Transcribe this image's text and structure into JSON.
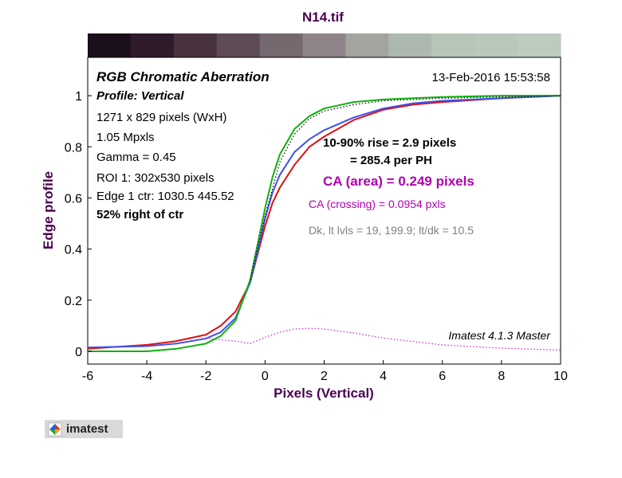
{
  "figure_title": "N14.tif",
  "logo_text": "imatest",
  "chart_data": {
    "type": "line",
    "title": "N14.tif",
    "xlabel": "Pixels (Vertical)",
    "ylabel": "Edge profile",
    "xlim": [
      -6,
      10
    ],
    "ylim": [
      -0.05,
      1.15
    ],
    "xticks": [
      "-6",
      "-4",
      "-2",
      "0",
      "2",
      "4",
      "6",
      "8",
      "10"
    ],
    "yticks": [
      "0",
      "0.2",
      "0.4",
      "0.6",
      "0.8",
      "1"
    ],
    "grid": false,
    "series": [
      {
        "color": "#e01010",
        "x": [
          -6,
          -4,
          -3,
          -2,
          -1.5,
          -1,
          -0.5,
          -0.25,
          0,
          0.25,
          0.5,
          1,
          1.5,
          2,
          3,
          4,
          5,
          6,
          8,
          10
        ],
        "y": [
          0.01,
          0.025,
          0.04,
          0.065,
          0.1,
          0.155,
          0.27,
          0.38,
          0.49,
          0.58,
          0.64,
          0.73,
          0.8,
          0.84,
          0.905,
          0.945,
          0.965,
          0.975,
          0.99,
          1.0
        ]
      },
      {
        "color": "#4050f0",
        "x": [
          -6,
          -4,
          -3,
          -2,
          -1.5,
          -1,
          -0.5,
          -0.25,
          0,
          0.25,
          0.5,
          1,
          1.5,
          2,
          3,
          4,
          5,
          6,
          8,
          10
        ],
        "y": [
          0.015,
          0.02,
          0.03,
          0.05,
          0.075,
          0.13,
          0.27,
          0.39,
          0.52,
          0.62,
          0.69,
          0.78,
          0.83,
          0.865,
          0.915,
          0.95,
          0.97,
          0.98,
          0.99,
          1.0
        ]
      },
      {
        "color": "#10b010",
        "x": [
          -6,
          -4,
          -3,
          -2,
          -1.5,
          -1,
          -0.5,
          -0.25,
          0,
          0.25,
          0.5,
          1,
          1.5,
          2,
          3,
          4,
          5,
          6,
          8,
          10
        ],
        "y": [
          0.0,
          0.0,
          0.01,
          0.03,
          0.06,
          0.12,
          0.28,
          0.42,
          0.56,
          0.68,
          0.77,
          0.87,
          0.92,
          0.95,
          0.975,
          0.985,
          0.99,
          0.995,
          1.0,
          1.0
        ]
      },
      {
        "color": "#000000",
        "style": "dotted",
        "x": [
          -0.5,
          0,
          0.5,
          1,
          1.5,
          2,
          3,
          4,
          6,
          8,
          10
        ],
        "y": [
          0.28,
          0.53,
          0.74,
          0.85,
          0.91,
          0.94,
          0.965,
          0.98,
          0.99,
          0.995,
          1.0
        ]
      },
      {
        "color": "#d020d0",
        "style": "dotted",
        "x": [
          -2,
          -1,
          -0.5,
          0,
          0.5,
          1,
          1.5,
          2,
          3,
          4,
          6,
          8,
          10
        ],
        "y": [
          0.05,
          0.04,
          0.03,
          0.055,
          0.075,
          0.087,
          0.09,
          0.087,
          0.072,
          0.052,
          0.025,
          0.012,
          0.005
        ]
      }
    ],
    "colorbar": [
      "#1a0f1a",
      "#2e1a2b",
      "#48323f",
      "#5e4b57",
      "#76686f",
      "#8e8489",
      "#a2a4a0",
      "#adb9ae",
      "#b6c6b8",
      "#bac8bc",
      "#bccbbe"
    ],
    "annotations": {
      "heading": "RGB Chromatic Aberration",
      "profile": "Profile: Vertical",
      "timestamp": "13-Feb-2016 15:53:58",
      "size": "1271 x 829 pixels (WxH)",
      "mpxls": "1.05 Mpxls",
      "gamma": "Gamma = 0.45",
      "roi": "ROI 1: 302x530 pixels",
      "edge_ctr": "Edge 1 ctr: 1030.5  445.52",
      "pct_right": "52% right of ctr",
      "rise": "10-90% rise = 2.9 pixels",
      "per_ph": "= 285.4 per PH",
      "ca_area": "CA (area) = 0.249 pixels",
      "ca_crossing": "CA (crossing) = 0.0954 pxls",
      "levels": "Dk, lt lvls = 19, 199.9;  lt/dk = 10.5",
      "version": "Imatest 4.1.3  Master"
    },
    "annotation_colors": {
      "ca": "#b000b0",
      "levels": "#808080",
      "axis_label": "#4a0050"
    }
  }
}
